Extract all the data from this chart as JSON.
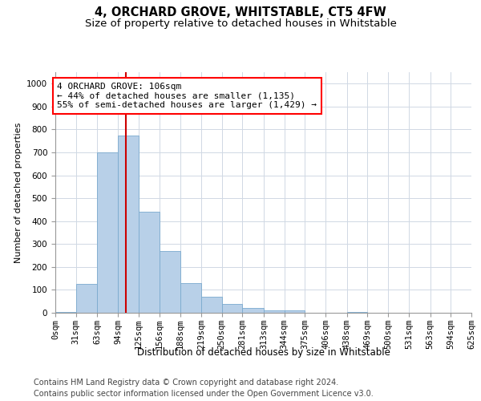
{
  "title": "4, ORCHARD GROVE, WHITSTABLE, CT5 4FW",
  "subtitle": "Size of property relative to detached houses in Whitstable",
  "xlabel": "Distribution of detached houses by size in Whitstable",
  "ylabel": "Number of detached properties",
  "bar_color": "#b8d0e8",
  "bar_edge_color": "#7aaace",
  "background_color": "#ffffff",
  "grid_color": "#d0d8e4",
  "vline_color": "#cc0000",
  "vline_x": 106,
  "annotation_text": "4 ORCHARD GROVE: 106sqm\n← 44% of detached houses are smaller (1,135)\n55% of semi-detached houses are larger (1,429) →",
  "bins": [
    0,
    31,
    63,
    94,
    125,
    156,
    188,
    219,
    250,
    281,
    313,
    344,
    375,
    406,
    438,
    469,
    500,
    531,
    563,
    594,
    625
  ],
  "bar_heights": [
    5,
    125,
    700,
    775,
    440,
    270,
    130,
    70,
    38,
    22,
    12,
    10,
    0,
    0,
    5,
    0,
    0,
    0,
    0,
    0
  ],
  "ylim": [
    0,
    1050
  ],
  "yticks": [
    0,
    100,
    200,
    300,
    400,
    500,
    600,
    700,
    800,
    900,
    1000
  ],
  "footer_text": "Contains HM Land Registry data © Crown copyright and database right 2024.\nContains public sector information licensed under the Open Government Licence v3.0.",
  "title_fontsize": 10.5,
  "subtitle_fontsize": 9.5,
  "xlabel_fontsize": 8.5,
  "ylabel_fontsize": 8,
  "tick_fontsize": 7.5,
  "annotation_fontsize": 8,
  "footer_fontsize": 7
}
